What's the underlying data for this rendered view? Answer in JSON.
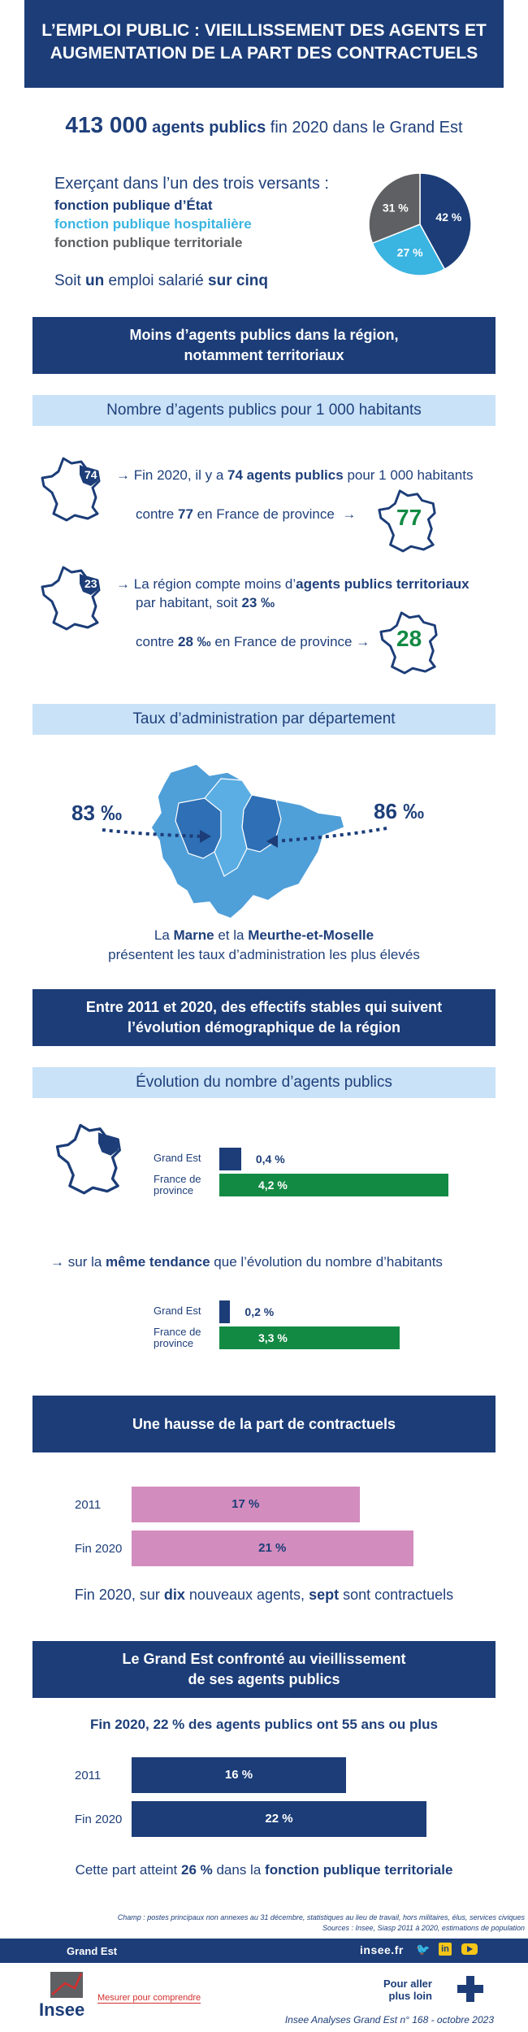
{
  "header": {
    "title": "L’EMPLOI PUBLIC : VIEILLISSEMENT DES AGENTS ET AUGMENTATION DE LA PART DES CONTRACTUELS"
  },
  "intro": {
    "big_number": "413 000",
    "big_label": "agents publics",
    "big_rest": "fin 2020 dans le Grand Est",
    "versants_intro": "Exerçant dans l’un des trois versants :",
    "versant_etat": "fonction publique d’État",
    "versant_hosp": "fonction publique hospitalière",
    "versant_terr": "fonction publique territoriale",
    "soit_1": "Soit",
    "soit_un": "un",
    "soit_2": "emploi salarié",
    "soit_cinq": "sur cinq"
  },
  "pie": {
    "slices": [
      {
        "label": "42 %",
        "value": 42,
        "color": "#1c3d78"
      },
      {
        "label": "27 %",
        "value": 27,
        "color": "#3ab4e1"
      },
      {
        "label": "31 %",
        "value": 31,
        "color": "#5f6063"
      }
    ]
  },
  "section1": {
    "title_line1": "Moins d’agents publics dans la région,",
    "title_line2": "notamment territoriaux",
    "sub": "Nombre d’agents publics pour 1 000 habitants",
    "fact1_map": "74",
    "fact1_a": "Fin 2020, il y a",
    "fact1_b": "74 agents publics",
    "fact1_c": "pour 1 000 habitants",
    "fact1_contre_a": "contre",
    "fact1_contre_b": "77",
    "fact1_contre_c": "en France de province",
    "fact1_map_right": "77",
    "fact2_map": "23",
    "fact2_a": "La région compte moins d’",
    "fact2_b": "agents publics territoriaux",
    "fact2_c": "par habitant, soit",
    "fact2_d": "23 ‰",
    "fact2_contre_a": "contre",
    "fact2_contre_b": "28 ‰",
    "fact2_contre_c": "en France de province",
    "fact2_map_right": "28",
    "sub2": "Taux d’administration par département",
    "left_rate": "83 ‰",
    "right_rate": "86 ‰",
    "caption_la": "La",
    "caption_marne": "Marne",
    "caption_et": "et la",
    "caption_mm": "Meurthe-et-Moselle",
    "caption_line2": "présentent les taux d’administration les plus élevés"
  },
  "section2": {
    "title_line1": "Entre 2011 et 2020, des effectifs stables qui suivent",
    "title_line2": "l’évolution démographique de la région",
    "sub": "Évolution du nombre d’agents publics",
    "chart1": [
      {
        "label": "Grand Est",
        "value": 0.4,
        "text": "0,4 %",
        "color": "#1c3d78"
      },
      {
        "label": "France de province",
        "value": 4.2,
        "text": "4,2 %",
        "color": "#138a44"
      }
    ],
    "sentence_a": "sur la",
    "sentence_b": "même tendance",
    "sentence_c": "que l’évolution du nombre d’habitants",
    "chart2": [
      {
        "label": "Grand Est",
        "value": 0.2,
        "text": "0,2 %",
        "color": "#1c3d78"
      },
      {
        "label": "France de province",
        "value": 3.3,
        "text": "3,3 %",
        "color": "#138a44"
      }
    ]
  },
  "section3": {
    "title": "Une hausse de la part de contractuels",
    "bars": [
      {
        "label": "2011",
        "value": 17,
        "text": "17 %"
      },
      {
        "label": "Fin 2020",
        "value": 21,
        "text": "21 %"
      }
    ],
    "color": "#d28cbd",
    "caption_a": "Fin 2020, sur",
    "caption_b": "dix",
    "caption_c": "nouveaux agents,",
    "caption_d": "sept",
    "caption_e": "sont contractuels"
  },
  "section4": {
    "title_line1": "Le Grand Est confronté au vieillissement",
    "title_line2": "de ses agents publics",
    "headline": "Fin 2020, 22 % des agents publics ont 55 ans ou plus",
    "bars": [
      {
        "label": "2011",
        "value": 16,
        "text": "16 %"
      },
      {
        "label": "Fin 2020",
        "value": 22,
        "text": "22 %"
      }
    ],
    "color": "#1c3d78",
    "caption_a": "Cette part atteint",
    "caption_b": "26 %",
    "caption_c": "dans la",
    "caption_d": "fonction publique territoriale"
  },
  "footnotes": {
    "champ": "Champ : postes principaux non annexes au 31 décembre, statistiques au lieu de travail, hors militaires, élus, services civiques",
    "sources": "Sources : Insee, Siasp 2011 à 2020, estimations de population"
  },
  "footer": {
    "region": "Grand Est",
    "site": "insee.fr",
    "logo_text": "Insee",
    "tagline": "Mesurer pour comprendre",
    "pour_aller": "Pour aller",
    "plus_loin": "plus loin",
    "publication": "Insee Analyses Grand Est n° 168 - octobre 2023"
  }
}
